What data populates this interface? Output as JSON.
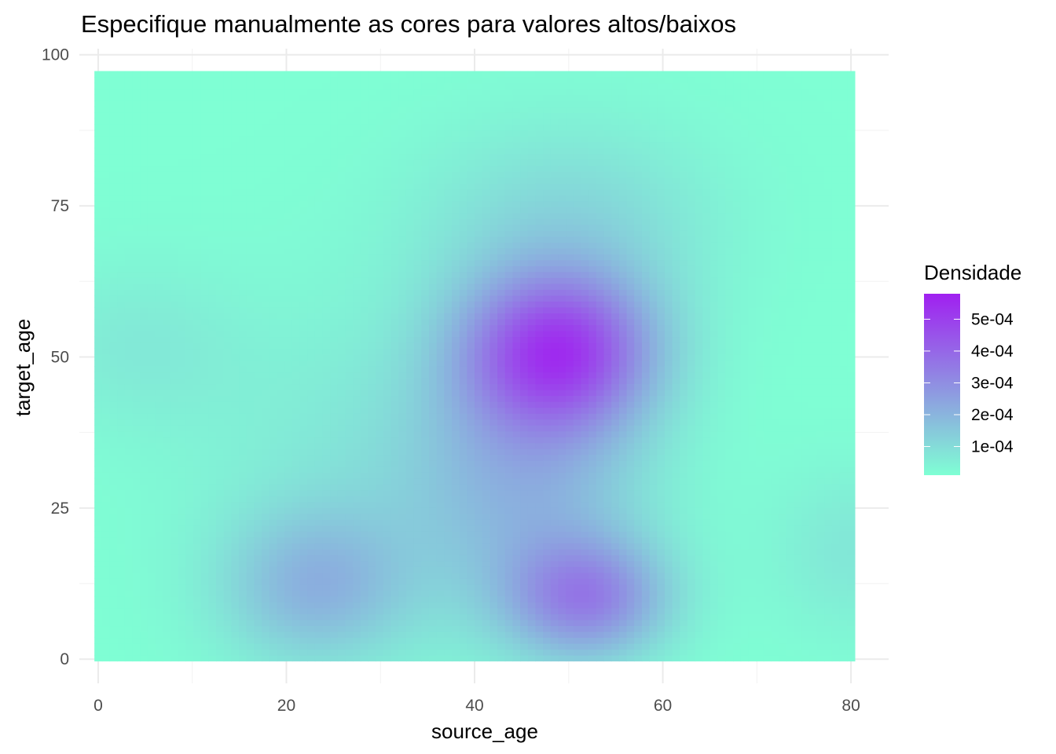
{
  "chart_data": {
    "type": "heatmap",
    "title": "Especifique manualmente as cores para valores altos/baixos",
    "xlabel": "source_age",
    "ylabel": "target_age",
    "xlim": [
      -2,
      84
    ],
    "ylim": [
      -4,
      101
    ],
    "data_extent": {
      "x": [
        -0.4,
        80.4
      ],
      "y": [
        -0.3,
        97.3
      ]
    },
    "x_ticks": [
      0,
      20,
      40,
      60,
      80
    ],
    "y_ticks": [
      0,
      25,
      50,
      75,
      100
    ],
    "x_tick_labels": [
      "0",
      "20",
      "40",
      "60",
      "80"
    ],
    "y_tick_labels": [
      "0",
      "25",
      "50",
      "75",
      "100"
    ],
    "x_minor": [
      10,
      30,
      50,
      70
    ],
    "y_minor": [
      12.5,
      37.5,
      62.5,
      87.5
    ],
    "grid": true,
    "colors": {
      "low": "#7FFFD4",
      "high": "#A020F0"
    },
    "legend": {
      "title": "Densidade",
      "position": "right",
      "range": [
        1e-05,
        0.00058
      ],
      "breaks": [
        0.0001,
        0.0002,
        0.0003,
        0.0004,
        0.0005
      ],
      "labels": [
        "1e-04",
        "2e-04",
        "3e-04",
        "4e-04",
        "5e-04"
      ]
    },
    "density_components": [
      {
        "x": 49,
        "y": 51,
        "sx": 7,
        "sy": 9,
        "value": 0.00044
      },
      {
        "x": 52,
        "y": 10,
        "sx": 6,
        "sy": 7,
        "value": 0.00028
      },
      {
        "x": 46,
        "y": 30,
        "sx": 9,
        "sy": 16,
        "value": 0.00016
      },
      {
        "x": 50,
        "y": 72,
        "sx": 11,
        "sy": 12,
        "value": 0.0001
      },
      {
        "x": 23,
        "y": 12,
        "sx": 7,
        "sy": 9,
        "value": 0.00017
      },
      {
        "x": 30,
        "y": 32,
        "sx": 14,
        "sy": 20,
        "value": 6e-05
      },
      {
        "x": 4,
        "y": 52,
        "sx": 8,
        "sy": 10,
        "value": 5e-05
      },
      {
        "x": 80,
        "y": 18,
        "sx": 6,
        "sy": 10,
        "value": 6e-05
      }
    ],
    "density_baseline": 1e-05
  }
}
